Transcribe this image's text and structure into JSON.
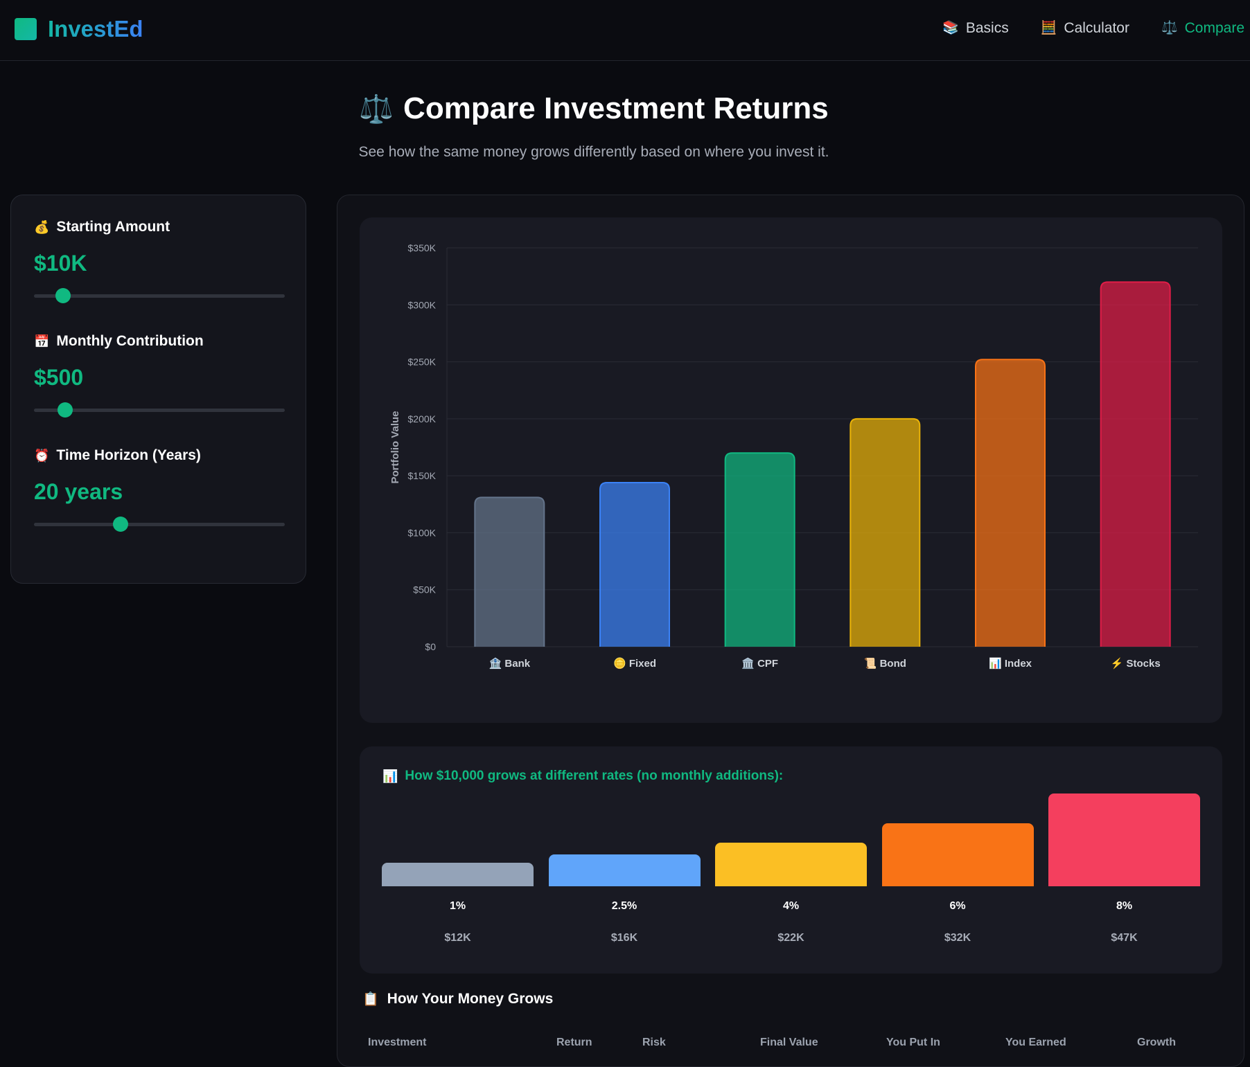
{
  "brand": {
    "name": "InvestEd"
  },
  "nav": [
    {
      "icon": "📚",
      "label": "Basics"
    },
    {
      "icon": "🧮",
      "label": "Calculator"
    },
    {
      "icon": "⚖️",
      "label": "Compare"
    }
  ],
  "hero": {
    "icon": "⚖️",
    "title": "Compare Investment Returns",
    "subtitle": "See how the same money grows differently based on where you invest it."
  },
  "controls": {
    "starting_amount": {
      "icon": "💰",
      "label": "Starting Amount",
      "value": "$10K",
      "slider_fraction": 0.115
    },
    "monthly_contribution": {
      "icon": "📅",
      "label": "Monthly Contribution",
      "value": "$500",
      "slider_fraction": 0.125
    },
    "time_horizon": {
      "icon": "⏰",
      "label": "Time Horizon (Years)",
      "value": "20 years",
      "slider_fraction": 0.345
    }
  },
  "chart_data": {
    "type": "bar",
    "title": "",
    "xlabel": "",
    "ylabel": "Portfolio Value",
    "ylim": [
      0,
      350000
    ],
    "yticks": [
      0,
      50000,
      100000,
      150000,
      200000,
      250000,
      300000,
      350000
    ],
    "ytick_labels": [
      "$0",
      "$50K",
      "$100K",
      "$150K",
      "$200K",
      "$250K",
      "$300K",
      "$350K"
    ],
    "grid": true,
    "categories": [
      "🏦 Bank",
      "🪙 Fixed",
      "🏛️ CPF",
      "📜 Bond",
      "📊 Index",
      "⚡ Stocks"
    ],
    "values": [
      131000,
      144000,
      170000,
      200000,
      252000,
      320000
    ],
    "colors": [
      "#64748b",
      "#3b82f6",
      "#10b981",
      "#eab308",
      "#f97316",
      "#e11d48"
    ]
  },
  "rates": {
    "icon": "📊",
    "title": "How $10,000 grows at different rates (no monthly additions):",
    "items": [
      {
        "rate": "1%",
        "value": "$12K",
        "amount": 12000,
        "color": "#94a3b8"
      },
      {
        "rate": "2.5%",
        "value": "$16K",
        "amount": 16000,
        "color": "#60a5fa"
      },
      {
        "rate": "4%",
        "value": "$22K",
        "amount": 22000,
        "color": "#fbbf24"
      },
      {
        "rate": "6%",
        "value": "$32K",
        "amount": 32000,
        "color": "#f97316"
      },
      {
        "rate": "8%",
        "value": "$47K",
        "amount": 47000,
        "color": "#f43f5e"
      }
    ]
  },
  "table": {
    "icon": "📋",
    "title": "How Your Money Grows",
    "headers": [
      "Investment",
      "Return",
      "Risk",
      "Final Value",
      "You Put In",
      "You Earned",
      "Growth"
    ]
  }
}
